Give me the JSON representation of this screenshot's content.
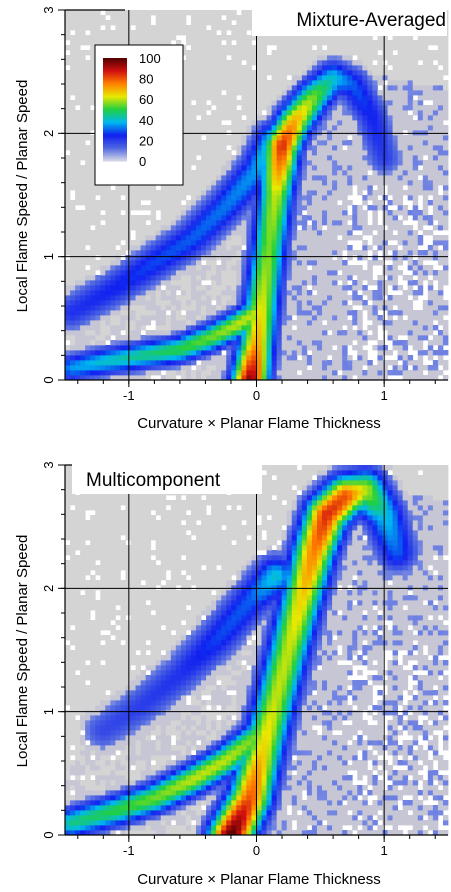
{
  "chart_data": [
    {
      "type": "heatmap",
      "title": "Mixture-Averaged",
      "xlabel": "Curvature × Planar Flame Thickness",
      "ylabel": "Local Flame Speed / Planar Speed",
      "xlim": [
        -1.5,
        1.5
      ],
      "ylim": [
        0,
        3
      ],
      "xticks": [
        "-1",
        "0",
        "1"
      ],
      "yticks": [
        "0",
        "1",
        "2",
        "3"
      ],
      "grid": true,
      "colorbar": {
        "range": [
          0,
          100
        ],
        "ticks": [
          "100",
          "80",
          "60",
          "40",
          "20",
          "0"
        ],
        "colormap": [
          "#d8d8e8",
          "#5068e0",
          "#1020f0",
          "#00b8f0",
          "#20d040",
          "#e8e800",
          "#ff8000",
          "#d01010",
          "#500000"
        ],
        "placement": "upper-left"
      },
      "density_ridges": [
        {
          "description": "main branch",
          "points": [
            [
              -0.05,
              0.0,
              95
            ],
            [
              0.0,
              0.3,
              70
            ],
            [
              0.05,
              0.7,
              60
            ],
            [
              0.1,
              1.1,
              55
            ],
            [
              0.15,
              1.5,
              60
            ],
            [
              0.2,
              1.9,
              85
            ],
            [
              0.3,
              2.1,
              70
            ],
            [
              0.45,
              2.3,
              55
            ],
            [
              0.6,
              2.45,
              40
            ],
            [
              0.75,
              2.4,
              30
            ],
            [
              0.9,
              2.15,
              25
            ],
            [
              1.0,
              1.8,
              20
            ]
          ],
          "width": 0.1
        },
        {
          "description": "negative-curvature branch",
          "points": [
            [
              -1.45,
              0.1,
              35
            ],
            [
              -1.2,
              0.15,
              40
            ],
            [
              -0.9,
              0.2,
              45
            ],
            [
              -0.6,
              0.25,
              50
            ],
            [
              -0.35,
              0.35,
              55
            ],
            [
              -0.15,
              0.45,
              60
            ],
            [
              0.0,
              0.55,
              60
            ]
          ],
          "width": 0.08
        },
        {
          "description": "upper negative band",
          "points": [
            [
              -1.45,
              0.55,
              22
            ],
            [
              -1.1,
              0.75,
              25
            ],
            [
              -0.8,
              0.95,
              28
            ],
            [
              -0.5,
              1.15,
              30
            ],
            [
              -0.25,
              1.4,
              32
            ],
            [
              0.0,
              1.7,
              35
            ],
            [
              0.15,
              1.95,
              45
            ]
          ],
          "width": 0.11
        }
      ],
      "background_region": "grey low-density envelope (0-5) covering x from -1.5 to 1.5, y from 0 to about 2.5"
    },
    {
      "type": "heatmap",
      "title": "Multicomponent",
      "xlabel": "Curvature × Planar Flame Thickness",
      "ylabel": "Local Flame Speed / Planar Speed",
      "xlim": [
        -1.5,
        1.5
      ],
      "ylim": [
        0,
        3
      ],
      "xticks": [
        "-1",
        "0",
        "1"
      ],
      "yticks": [
        "0",
        "1",
        "2",
        "3"
      ],
      "grid": true,
      "density_ridges": [
        {
          "description": "main branch",
          "points": [
            [
              -0.2,
              0.0,
              100
            ],
            [
              -0.05,
              0.3,
              80
            ],
            [
              0.05,
              0.7,
              65
            ],
            [
              0.15,
              1.1,
              60
            ],
            [
              0.25,
              1.5,
              60
            ],
            [
              0.35,
              1.9,
              65
            ],
            [
              0.45,
              2.3,
              75
            ],
            [
              0.55,
              2.6,
              85
            ],
            [
              0.7,
              2.75,
              80
            ],
            [
              0.85,
              2.8,
              60
            ],
            [
              1.0,
              2.6,
              40
            ],
            [
              1.1,
              2.3,
              30
            ]
          ],
          "width": 0.12
        },
        {
          "description": "negative-curvature branch",
          "points": [
            [
              -1.45,
              0.1,
              45
            ],
            [
              -1.1,
              0.2,
              50
            ],
            [
              -0.8,
              0.3,
              55
            ],
            [
              -0.5,
              0.45,
              60
            ],
            [
              -0.25,
              0.6,
              60
            ],
            [
              0.0,
              0.8,
              55
            ],
            [
              0.15,
              1.0,
              55
            ]
          ],
          "width": 0.09
        },
        {
          "description": "upper negative band",
          "points": [
            [
              -1.2,
              0.85,
              18
            ],
            [
              -0.9,
              1.05,
              20
            ],
            [
              -0.6,
              1.3,
              22
            ],
            [
              -0.3,
              1.6,
              28
            ],
            [
              -0.05,
              1.9,
              30
            ],
            [
              0.15,
              2.1,
              40
            ]
          ],
          "width": 0.12
        }
      ],
      "background_region": "grey low-density envelope (0-5) covering x from -1.5 to 1.5, y from 0 to about 2.85"
    }
  ]
}
